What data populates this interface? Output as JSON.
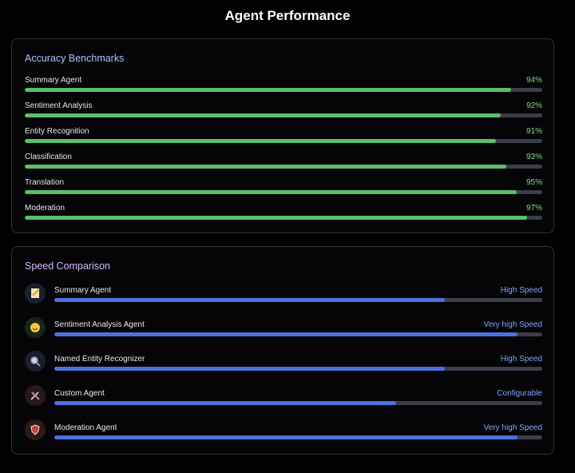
{
  "title": "Agent Performance",
  "accuracy": {
    "title": "Accuracy Benchmarks",
    "xlim": [
      0,
      100
    ],
    "items": [
      {
        "label": "Summary Agent",
        "value": 94,
        "value_label": "94%"
      },
      {
        "label": "Sentiment Analysis",
        "value": 92,
        "value_label": "92%"
      },
      {
        "label": "Entity Recognition",
        "value": 91,
        "value_label": "91%"
      },
      {
        "label": "Classification",
        "value": 93,
        "value_label": "93%"
      },
      {
        "label": "Translation",
        "value": 95,
        "value_label": "95%"
      },
      {
        "label": "Moderation",
        "value": 97,
        "value_label": "97%"
      }
    ]
  },
  "speed": {
    "title": "Speed Comparison",
    "xlim": [
      0,
      100
    ],
    "items": [
      {
        "label": "Summary Agent",
        "speed": "High Speed",
        "value": 80
      },
      {
        "label": "Sentiment Analysis Agent",
        "speed": "Very high Speed",
        "value": 95
      },
      {
        "label": "Named Entity Recognizer",
        "speed": "High Speed",
        "value": 80
      },
      {
        "label": "Custom Agent",
        "speed": "Configurable",
        "value": 70
      },
      {
        "label": "Moderation Agent",
        "speed": "Very high Speed",
        "value": 95
      }
    ]
  }
}
